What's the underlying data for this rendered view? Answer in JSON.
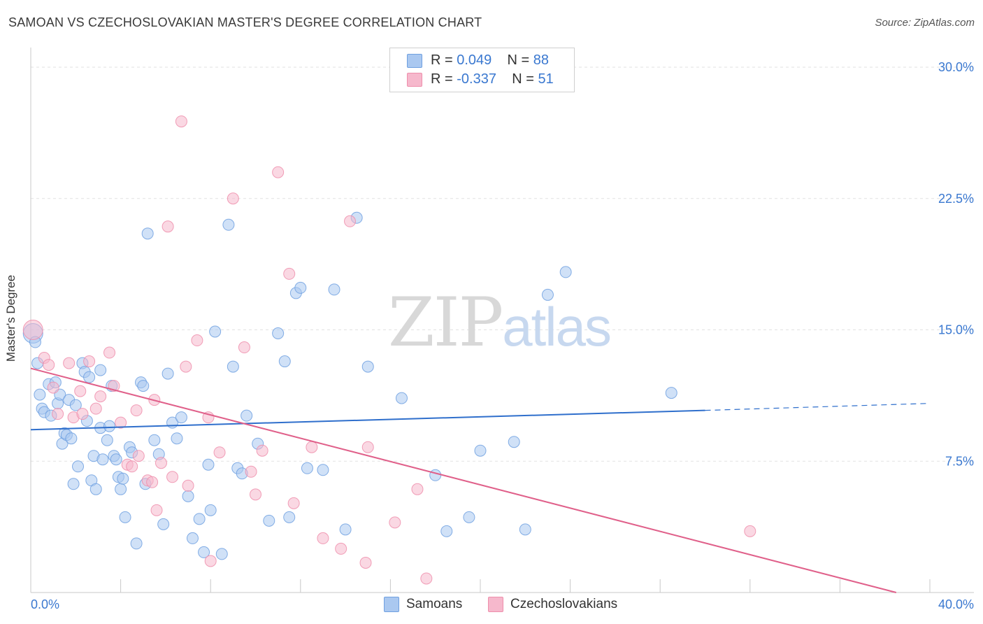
{
  "title": "SAMOAN VS CZECHOSLOVAKIAN MASTER'S DEGREE CORRELATION CHART",
  "source": "Source: ZipAtlas.com",
  "watermark": {
    "part1": "ZIP",
    "part2": "atlas"
  },
  "legend": {
    "rows": [
      {
        "r_label": "R = ",
        "r_value": "0.049",
        "n_label": "N = ",
        "n_value": "88",
        "color": "#aac8f0"
      },
      {
        "r_label": "R = ",
        "r_value": "-0.337",
        "n_label": "N = ",
        "n_value": "51",
        "color": "#f6b8cc"
      }
    ]
  },
  "bottom_legend": [
    {
      "label": "Samoans",
      "color": "#aac8f0"
    },
    {
      "label": "Czechoslovakians",
      "color": "#f6b8cc"
    }
  ],
  "chart_data": {
    "type": "scatter",
    "title": "SAMOAN VS CZECHOSLOVAKIAN MASTER'S DEGREE CORRELATION CHART",
    "xlabel": "",
    "ylabel": "Master's Degree",
    "xlim": [
      0,
      40
    ],
    "ylim": [
      0,
      30
    ],
    "x_tick_labels": [
      "0.0%",
      "40.0%"
    ],
    "y_ticks": [
      7.5,
      15.0,
      22.5,
      30.0
    ],
    "y_tick_labels": [
      "7.5%",
      "15.0%",
      "22.5%",
      "30.0%"
    ],
    "grid": true,
    "legend_position": "top-center",
    "series": [
      {
        "name": "Samoans",
        "color": "#6fa0e0",
        "fill": "#aac8f0",
        "trend": {
          "x": [
            0,
            30
          ],
          "y": [
            9.3,
            10.4
          ],
          "dashed_to": [
            40,
            10.8
          ],
          "color": "#2f6fcc"
        },
        "points": [
          [
            0.1,
            14.8
          ],
          [
            0.2,
            14.3
          ],
          [
            0.3,
            13.1
          ],
          [
            0.4,
            11.3
          ],
          [
            0.5,
            10.5
          ],
          [
            0.6,
            10.3
          ],
          [
            0.8,
            11.9
          ],
          [
            0.9,
            10.1
          ],
          [
            1.1,
            12.0
          ],
          [
            1.2,
            10.8
          ],
          [
            1.3,
            11.3
          ],
          [
            1.4,
            8.5
          ],
          [
            1.5,
            9.1
          ],
          [
            1.6,
            9.0
          ],
          [
            1.7,
            11.0
          ],
          [
            1.8,
            8.8
          ],
          [
            1.9,
            6.2
          ],
          [
            2.0,
            10.7
          ],
          [
            2.1,
            7.2
          ],
          [
            2.3,
            13.1
          ],
          [
            2.4,
            12.6
          ],
          [
            2.5,
            9.8
          ],
          [
            2.6,
            12.3
          ],
          [
            2.7,
            6.4
          ],
          [
            2.8,
            7.8
          ],
          [
            2.9,
            5.9
          ],
          [
            3.1,
            12.7
          ],
          [
            3.1,
            9.4
          ],
          [
            3.2,
            7.6
          ],
          [
            3.4,
            8.7
          ],
          [
            3.5,
            9.5
          ],
          [
            3.6,
            11.8
          ],
          [
            3.7,
            7.8
          ],
          [
            3.8,
            7.6
          ],
          [
            3.9,
            6.6
          ],
          [
            4.0,
            5.9
          ],
          [
            4.1,
            6.5
          ],
          [
            4.2,
            4.3
          ],
          [
            4.4,
            8.3
          ],
          [
            4.5,
            8.0
          ],
          [
            4.7,
            2.8
          ],
          [
            4.9,
            12.0
          ],
          [
            5.0,
            11.8
          ],
          [
            5.1,
            6.2
          ],
          [
            5.2,
            20.5
          ],
          [
            5.5,
            8.7
          ],
          [
            5.7,
            7.9
          ],
          [
            5.9,
            3.9
          ],
          [
            6.1,
            12.5
          ],
          [
            6.3,
            9.7
          ],
          [
            6.5,
            8.8
          ],
          [
            6.7,
            10.0
          ],
          [
            7.0,
            5.5
          ],
          [
            7.2,
            3.1
          ],
          [
            7.5,
            4.2
          ],
          [
            7.7,
            2.3
          ],
          [
            7.9,
            7.3
          ],
          [
            8.0,
            4.7
          ],
          [
            8.2,
            14.9
          ],
          [
            8.5,
            2.2
          ],
          [
            8.8,
            21.0
          ],
          [
            9.0,
            12.9
          ],
          [
            9.2,
            7.1
          ],
          [
            9.4,
            6.8
          ],
          [
            9.6,
            10.1
          ],
          [
            10.1,
            8.5
          ],
          [
            10.6,
            4.1
          ],
          [
            11.0,
            14.8
          ],
          [
            11.3,
            13.2
          ],
          [
            11.5,
            4.3
          ],
          [
            11.8,
            17.1
          ],
          [
            12.0,
            17.4
          ],
          [
            12.3,
            7.1
          ],
          [
            13.0,
            7.0
          ],
          [
            13.5,
            17.3
          ],
          [
            14.0,
            3.6
          ],
          [
            14.5,
            21.4
          ],
          [
            15.0,
            12.9
          ],
          [
            16.5,
            11.1
          ],
          [
            18.0,
            6.7
          ],
          [
            18.5,
            3.5
          ],
          [
            19.5,
            4.3
          ],
          [
            20.0,
            8.1
          ],
          [
            21.5,
            8.6
          ],
          [
            22.0,
            3.6
          ],
          [
            23.0,
            17.0
          ],
          [
            23.8,
            18.3
          ],
          [
            28.5,
            11.4
          ]
        ]
      },
      {
        "name": "Czechoslovakians",
        "color": "#ee8eab",
        "fill": "#f6b8cc",
        "trend": {
          "x": [
            0,
            38.5
          ],
          "y": [
            12.8,
            0.0
          ],
          "color": "#e0608a"
        },
        "points": [
          [
            0.1,
            15.0
          ],
          [
            0.6,
            13.4
          ],
          [
            0.8,
            13.0
          ],
          [
            1.0,
            11.7
          ],
          [
            1.2,
            10.2
          ],
          [
            1.7,
            13.1
          ],
          [
            1.9,
            10.0
          ],
          [
            2.2,
            11.5
          ],
          [
            2.3,
            10.2
          ],
          [
            2.6,
            13.2
          ],
          [
            2.9,
            10.5
          ],
          [
            3.1,
            11.2
          ],
          [
            3.5,
            13.7
          ],
          [
            3.7,
            11.8
          ],
          [
            4.0,
            9.7
          ],
          [
            4.3,
            7.3
          ],
          [
            4.5,
            7.2
          ],
          [
            4.7,
            10.4
          ],
          [
            4.8,
            7.8
          ],
          [
            5.2,
            6.4
          ],
          [
            5.4,
            6.3
          ],
          [
            5.5,
            11.0
          ],
          [
            5.6,
            4.7
          ],
          [
            5.8,
            7.4
          ],
          [
            6.1,
            20.9
          ],
          [
            6.3,
            6.6
          ],
          [
            6.7,
            26.9
          ],
          [
            6.9,
            12.9
          ],
          [
            7.0,
            6.1
          ],
          [
            7.4,
            14.4
          ],
          [
            7.9,
            10.0
          ],
          [
            8.0,
            1.8
          ],
          [
            8.4,
            8.0
          ],
          [
            9.0,
            22.5
          ],
          [
            9.5,
            14.0
          ],
          [
            9.8,
            6.9
          ],
          [
            10.0,
            5.6
          ],
          [
            10.3,
            8.1
          ],
          [
            11.0,
            24.0
          ],
          [
            11.5,
            18.2
          ],
          [
            11.7,
            5.1
          ],
          [
            12.5,
            8.3
          ],
          [
            13.0,
            3.1
          ],
          [
            13.8,
            2.5
          ],
          [
            14.2,
            21.2
          ],
          [
            14.9,
            1.7
          ],
          [
            15.0,
            8.3
          ],
          [
            16.2,
            4.0
          ],
          [
            17.2,
            5.9
          ],
          [
            17.6,
            0.8
          ],
          [
            32.0,
            3.5
          ]
        ]
      }
    ]
  }
}
